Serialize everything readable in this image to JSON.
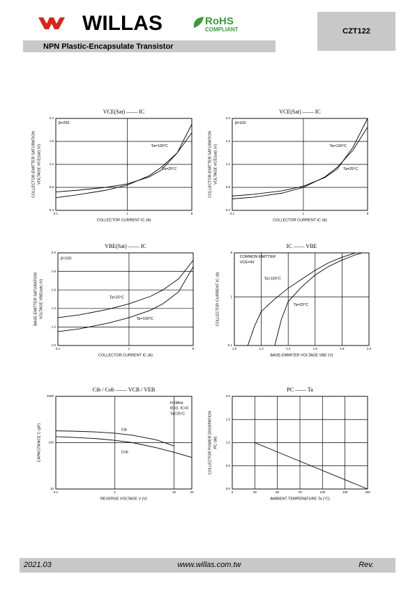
{
  "header": {
    "brand": "WILLAS",
    "rohs": "RoHS",
    "rohs_sub": "COMPLIANT",
    "part": "CZT122",
    "subtitle": "NPN Plastic-Encapsulate Transistor"
  },
  "footer": {
    "date": "2021.03",
    "site": "www.willas.com.tw",
    "rev": "Rev."
  },
  "chart_data": [
    {
      "type": "line",
      "title": "VCE(Sat) —— IC",
      "xlabel": "COLLECTOR CURRENT  IC  (A)",
      "ylabel": [
        "COLLECTOR-EMITTER SATURATION",
        "VOLTAGE  VCE(sat)  (V)"
      ],
      "xlog": true,
      "ylog": false,
      "grid": true,
      "xlim": [
        0.1,
        8
      ],
      "ylim": [
        0.4,
        2.0
      ],
      "xticks": [
        0.1,
        1,
        8
      ],
      "yticks": [
        0.4,
        0.8,
        1.2,
        1.6,
        {
          "value": 2,
          "label": "2.0"
        }
      ],
      "series": [
        {
          "name": "Ta=100°C",
          "color": "#000000",
          "x": [
            0.1,
            0.2,
            0.5,
            1,
            2,
            3,
            5,
            8
          ],
          "values": [
            0.72,
            0.75,
            0.8,
            0.86,
            0.98,
            1.1,
            1.4,
            1.9
          ]
        },
        {
          "name": "Ta=25°C",
          "color": "#000000",
          "x": [
            0.1,
            0.2,
            0.5,
            1,
            2,
            3,
            5,
            8
          ],
          "values": [
            0.62,
            0.67,
            0.75,
            0.84,
            1.0,
            1.15,
            1.4,
            1.75
          ]
        }
      ],
      "annotations": [
        "β=250"
      ]
    },
    {
      "type": "line",
      "title": "VCE(Sat) —— IC",
      "xlabel": "COLLECTOR CURRENT  IC  (A)",
      "ylabel": [
        "COLLECTOR-EMITTER SATURATION",
        "VOLTAGE  VCE(sat)  (V)"
      ],
      "xlog": true,
      "ylog": false,
      "grid": true,
      "xlim": [
        0.1,
        8
      ],
      "ylim": [
        0.4,
        2.0
      ],
      "xticks": [
        0.1,
        1,
        8
      ],
      "yticks": [
        0.4,
        0.8,
        1.2,
        1.6,
        {
          "value": 2,
          "label": "2.0"
        }
      ],
      "series": [
        {
          "name": "Ta=100°C",
          "color": "#000000",
          "x": [
            0.1,
            0.2,
            0.5,
            1,
            2,
            3,
            5,
            8
          ],
          "values": [
            0.6,
            0.63,
            0.7,
            0.8,
            0.98,
            1.15,
            1.45,
            1.85
          ]
        },
        {
          "name": "Ta=25°C",
          "color": "#000000",
          "x": [
            0.1,
            0.2,
            0.5,
            1,
            2,
            3,
            5,
            8
          ],
          "values": [
            0.65,
            0.68,
            0.74,
            0.82,
            0.97,
            1.12,
            1.5,
            2.0
          ]
        }
      ],
      "annotations": [
        "β=100"
      ]
    },
    {
      "type": "line",
      "title": "VBE(Sat) —— IC",
      "xlabel": "COLLECTOR CURRENT  IC  (A)",
      "ylabel": [
        "BASE-EMITTER SATURATION",
        "VOLTAGE  VBE(sat)  (V)"
      ],
      "xlog": true,
      "ylog": false,
      "grid": true,
      "xlim": [
        0.1,
        8
      ],
      "ylim": [
        1.0,
        2.0
      ],
      "xticks": [
        0.1,
        1,
        8
      ],
      "yticks": [
        {
          "value": 1,
          "label": "1.0"
        },
        1.2,
        1.4,
        1.6,
        1.8,
        {
          "value": 2,
          "label": "2.0"
        }
      ],
      "series": [
        {
          "name": "Ta=25°C",
          "color": "#000000",
          "x": [
            0.1,
            0.2,
            0.5,
            1,
            2,
            3,
            5,
            8
          ],
          "values": [
            1.3,
            1.33,
            1.39,
            1.45,
            1.53,
            1.6,
            1.72,
            1.92
          ]
        },
        {
          "name": "Ta=100°C",
          "color": "#000000",
          "x": [
            0.1,
            0.2,
            0.5,
            1,
            2,
            3,
            5,
            8
          ],
          "values": [
            1.15,
            1.18,
            1.24,
            1.3,
            1.38,
            1.45,
            1.58,
            1.85
          ]
        }
      ],
      "annotations": [
        "β=100"
      ]
    },
    {
      "type": "line",
      "title": "IC —— VBE",
      "xlabel": "BASE-EMMITER VOLTAGE  VBE  (V)",
      "ylabel": [
        "COLLECTOR CURRENT  IC  (A)"
      ],
      "xlog": false,
      "ylog": true,
      "grid": true,
      "xlim": [
        1.0,
        2.0
      ],
      "ylim": [
        0.1,
        8
      ],
      "xticks": [
        {
          "value": 1,
          "label": "1.0"
        },
        1.2,
        1.4,
        1.6,
        1.8,
        {
          "value": 2,
          "label": "2.0"
        }
      ],
      "yticks": [
        0.1,
        1,
        8
      ],
      "series": [
        {
          "name": "Ta=100°C",
          "color": "#000000",
          "x": [
            1.1,
            1.15,
            1.2,
            1.3,
            1.4,
            1.5,
            1.6,
            1.7,
            1.8,
            1.9
          ],
          "values": [
            0.1,
            0.25,
            0.5,
            0.9,
            1.5,
            2.3,
            3.5,
            5,
            6.5,
            8
          ]
        },
        {
          "name": "Ta=25°C",
          "color": "#000000",
          "x": [
            1.3,
            1.35,
            1.4,
            1.5,
            1.6,
            1.7,
            1.8,
            1.9,
            1.95
          ],
          "values": [
            0.1,
            0.35,
            0.8,
            1.6,
            2.8,
            4.2,
            5.7,
            7.3,
            8
          ]
        }
      ],
      "annotations": [
        "COMMON EMITTER",
        "VCE=4V"
      ]
    },
    {
      "type": "line",
      "title": "Cib / Cob —— VCB / VEB",
      "xlabel": "REVERSE VOLTAGE   V   (V)",
      "ylabel": [
        "CAPACITANCE   C   (pF)"
      ],
      "xlog": true,
      "ylog": true,
      "grid": true,
      "xlim": [
        0.1,
        20
      ],
      "ylim": [
        10,
        1000
      ],
      "xticks": [
        0.1,
        1,
        10,
        20
      ],
      "yticks": [
        10,
        100,
        1000
      ],
      "series": [
        {
          "name": "Cib",
          "color": "#000000",
          "x": [
            0.1,
            0.2,
            0.5,
            1,
            2,
            5,
            10
          ],
          "values": [
            180,
            177,
            170,
            160,
            145,
            115,
            85
          ]
        },
        {
          "name": "Cob",
          "color": "#000000",
          "x": [
            0.1,
            0.2,
            0.5,
            1,
            2,
            5,
            10,
            20
          ],
          "values": [
            135,
            130,
            122,
            112,
            100,
            78,
            62,
            48
          ]
        }
      ],
      "annotations": [
        "f=1MHz",
        "IE=0, IC=0",
        "Ta=25°C"
      ]
    },
    {
      "type": "line",
      "title": "PC —— Ta",
      "xlabel": "AMBIENT TEMPERATURE   Ta  (°C)",
      "ylabel": [
        "COLLECTOR POWER DISSIPATION",
        "PC  (W)"
      ],
      "xlog": false,
      "ylog": false,
      "grid": true,
      "xlim": [
        0,
        150
      ],
      "ylim": [
        0,
        2.0
      ],
      "xticks": [
        0,
        25,
        50,
        75,
        100,
        125,
        150
      ],
      "yticks": [
        {
          "value": 0,
          "label": "0.0"
        },
        0.5,
        {
          "value": 1,
          "label": "1.0"
        },
        1.5,
        {
          "value": 2,
          "label": "2.0"
        }
      ],
      "series": [
        {
          "name": "",
          "color": "#000000",
          "x": [
            25,
            150
          ],
          "values": [
            1.0,
            0
          ]
        }
      ],
      "annotations": []
    }
  ]
}
